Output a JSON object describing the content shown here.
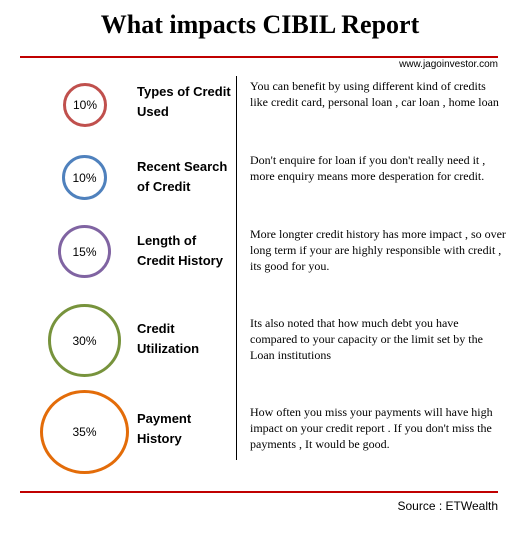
{
  "title": "What impacts CIBIL Report",
  "website": "www.jagoinvestor.com",
  "source": "Source : ETWealth",
  "factors": [
    {
      "percent": "10%",
      "name": "Types of Credit Used",
      "description": "You can benefit by  using different kind of credits like  credit card, personal loan , car loan , home loan",
      "color": "#c0504d"
    },
    {
      "percent": "10%",
      "name": "Recent Search of Credit",
      "description": "Don't enquire for loan if you don't really need it , more enquiry means more desperation for credit.",
      "color": "#4f81bd"
    },
    {
      "percent": "15%",
      "name": "Length of Credit History",
      "description": "More longter credit history has more impact , so over long term if your are highly responsible with credit , its good for you.",
      "color": "#8064a2"
    },
    {
      "percent": "30%",
      "name": "Credit Utilization",
      "description": "Its also noted that how much debt you have compared to your capacity or the limit set by the Loan institutions",
      "color": "#77933c"
    },
    {
      "percent": "35%",
      "name": "Payment History",
      "description": "How often you miss your payments will have high impact on your credit report . If you don't miss the payments , It would be good.",
      "color": "#e36c09"
    }
  ]
}
